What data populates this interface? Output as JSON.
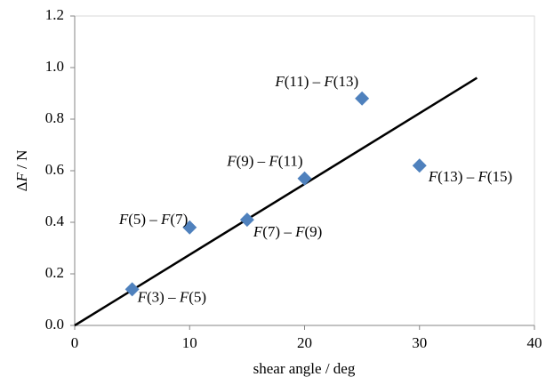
{
  "chart_data": {
    "type": "scatter",
    "x_label": "shear angle / deg",
    "y_label": "ΔF / N",
    "series": [
      {
        "color": "#4f81bd",
        "x": [
          5,
          10,
          15,
          20,
          25,
          30
        ],
        "values": [
          0.14,
          0.38,
          0.41,
          0.57,
          0.88,
          0.62
        ],
        "labels": [
          "F(3) – F(5)",
          "F(5) – F(7)",
          "F(7) – F(9)",
          "F(9) – F(11)",
          "F(11) – F(13)",
          "F(13) – F(15)"
        ]
      }
    ],
    "trendline": {
      "color": "#000000",
      "x": [
        0,
        35
      ],
      "values": [
        0,
        0.96
      ]
    },
    "xlim": [
      0,
      40
    ],
    "xticks": [
      0,
      10,
      20,
      30,
      40
    ],
    "ylim": [
      0,
      1.2
    ],
    "yticks": [
      {
        "value": 0,
        "label": "0.0"
      },
      0.2,
      0.4,
      0.6,
      0.8,
      {
        "value": 1,
        "label": "1.0"
      },
      1.2
    ],
    "grid": false
  }
}
